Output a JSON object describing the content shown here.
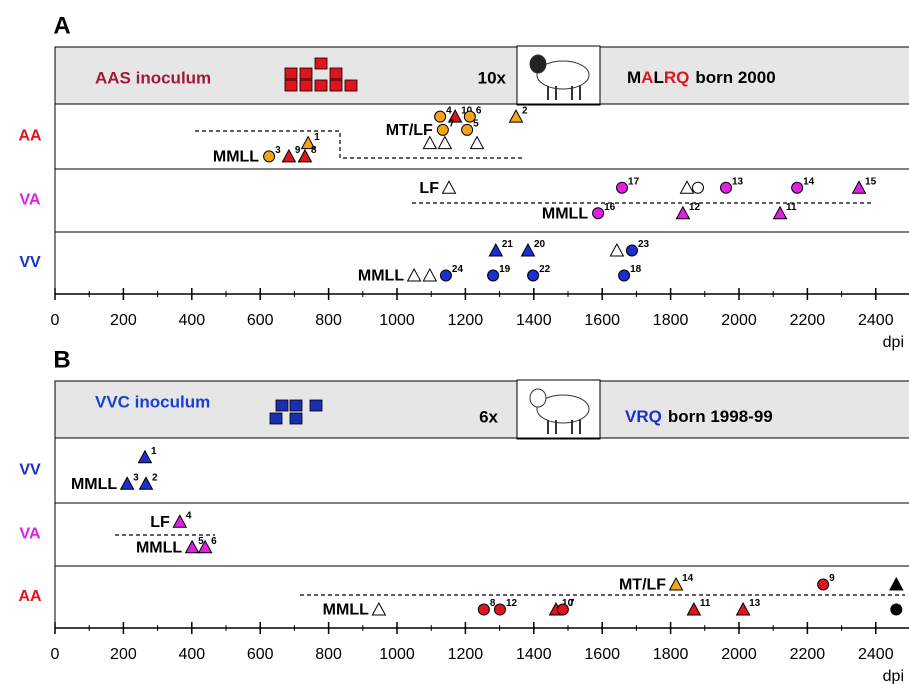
{
  "chart_data": [
    {
      "type": "scatter",
      "panel": "A",
      "header": {
        "inoculum": "AAS inoculum",
        "inoculum_color": "#a3173d",
        "marker_color": "#e0141e",
        "dose": "10x",
        "genotype": [
          {
            "text": "M",
            "color": "#000000"
          },
          {
            "text": "A",
            "color": "#e0141e"
          },
          {
            "text": "L",
            "color": "#000000"
          },
          {
            "text": "RQ",
            "color": "#e0141e"
          }
        ],
        "born": "born 2000"
      },
      "rows": [
        {
          "name": "AA",
          "color": "#e0141e",
          "tiers": [
            {
              "points": [
                {
                  "x": 1126,
                  "id": 4,
                  "shape": "circle",
                  "color": "#f5a31a"
                },
                {
                  "x": 1170,
                  "id": 10,
                  "shape": "triangle",
                  "color": "#e0141e"
                },
                {
                  "x": 1213,
                  "id": 6,
                  "shape": "circle",
                  "color": "#f5a31a"
                },
                {
                  "x": 1348,
                  "id": 2,
                  "shape": "triangle",
                  "color": "#f5a31a"
                }
              ]
            },
            {
              "label": "MT/LF",
              "points": [
                {
                  "x": 1134,
                  "id": 7,
                  "shape": "circle",
                  "color": "#f5a31a"
                },
                {
                  "x": 1205,
                  "id": 5,
                  "shape": "circle",
                  "color": "#f5a31a"
                }
              ]
            },
            {
              "points": [
                {
                  "x": 1096,
                  "shape": "triangle",
                  "color": "#ffffff"
                },
                {
                  "x": 1140,
                  "shape": "triangle",
                  "color": "#ffffff"
                },
                {
                  "x": 1234,
                  "shape": "triangle",
                  "color": "#ffffff"
                },
                {
                  "x": 740,
                  "id": 1,
                  "shape": "triangle",
                  "color": "#f5a31a"
                }
              ]
            },
            {
              "label": "MMLL",
              "points": [
                {
                  "x": 626,
                  "id": 3,
                  "shape": "circle",
                  "color": "#f5a31a"
                },
                {
                  "x": 684,
                  "id": 9,
                  "shape": "triangle",
                  "color": "#e0141e"
                },
                {
                  "x": 731,
                  "id": 8,
                  "shape": "triangle",
                  "color": "#e0141e"
                }
              ]
            }
          ]
        },
        {
          "name": "VA",
          "color": "#e020e0",
          "tiers": [
            {
              "label": "LF",
              "points": [
                {
                  "x": 1152,
                  "shape": "triangle",
                  "color": "#ffffff"
                },
                {
                  "x": 1658,
                  "id": 17,
                  "shape": "circle",
                  "color": "#e020e0"
                },
                {
                  "x": 1848,
                  "shape": "triangle",
                  "color": "#ffffff"
                },
                {
                  "x": 1880,
                  "shape": "circle",
                  "color": "#ffffff"
                },
                {
                  "x": 1962,
                  "id": 13,
                  "shape": "circle",
                  "color": "#e020e0"
                },
                {
                  "x": 2170,
                  "id": 14,
                  "shape": "circle",
                  "color": "#e020e0"
                },
                {
                  "x": 2351,
                  "id": 15,
                  "shape": "triangle",
                  "color": "#e020e0"
                }
              ]
            },
            {
              "label": "MMLL",
              "points": [
                {
                  "x": 1588,
                  "id": 16,
                  "shape": "circle",
                  "color": "#e020e0"
                },
                {
                  "x": 1836,
                  "id": 12,
                  "shape": "triangle",
                  "color": "#e020e0"
                },
                {
                  "x": 2120,
                  "id": 11,
                  "shape": "triangle",
                  "color": "#e020e0"
                }
              ]
            }
          ]
        },
        {
          "name": "VV",
          "color": "#1a2fd0",
          "tiers": [
            {
              "points": [
                {
                  "x": 1289,
                  "id": 21,
                  "shape": "triangle",
                  "color": "#1a2fd0"
                },
                {
                  "x": 1383,
                  "id": 20,
                  "shape": "triangle",
                  "color": "#1a2fd0"
                },
                {
                  "x": 1643,
                  "shape": "triangle",
                  "color": "#ffffff"
                },
                {
                  "x": 1687,
                  "id": 23,
                  "shape": "circle",
                  "color": "#1a2fd0"
                }
              ]
            },
            {
              "label": "MMLL",
              "points": [
                {
                  "x": 1050,
                  "shape": "triangle",
                  "color": "#ffffff"
                },
                {
                  "x": 1096,
                  "shape": "triangle",
                  "color": "#ffffff"
                },
                {
                  "x": 1143,
                  "id": 24,
                  "shape": "circle",
                  "color": "#1a2fd0"
                },
                {
                  "x": 1281,
                  "id": 19,
                  "shape": "circle",
                  "color": "#1a2fd0"
                },
                {
                  "x": 1398,
                  "id": 22,
                  "shape": "circle",
                  "color": "#1a2fd0"
                },
                {
                  "x": 1664,
                  "id": 18,
                  "shape": "circle",
                  "color": "#1a2fd0"
                }
              ]
            }
          ]
        }
      ],
      "xlim": [
        0,
        2500
      ],
      "xticks": [
        0,
        200,
        400,
        600,
        800,
        1000,
        1200,
        1400,
        1600,
        1800,
        2000,
        2200,
        2400
      ],
      "xminorticks": [
        100,
        300,
        500,
        700,
        900,
        1100,
        1300,
        1500,
        1700,
        1900,
        2100,
        2300
      ],
      "xlabel": "dpi"
    },
    {
      "type": "scatter",
      "panel": "B",
      "header": {
        "inoculum": "VVC inoculum",
        "inoculum_color": "#1a3fd0",
        "marker_color": "#1a2fb0",
        "dose": "6x",
        "genotype": [
          {
            "text": "VRQ",
            "color": "#1a2fd0"
          }
        ],
        "born": "born 1998-99"
      },
      "rows": [
        {
          "name": "VV",
          "color": "#1a2fd0",
          "tiers": [
            {
              "points": [
                {
                  "x": 263,
                  "id": 1,
                  "shape": "triangle",
                  "color": "#1a2fd0"
                }
              ]
            },
            {
              "label": "MMLL",
              "points": [
                {
                  "x": 211,
                  "id": 3,
                  "shape": "triangle",
                  "color": "#1a2fd0"
                },
                {
                  "x": 266,
                  "id": 2,
                  "shape": "triangle",
                  "color": "#1a2fd0"
                }
              ]
            }
          ]
        },
        {
          "name": "VA",
          "color": "#e020e0",
          "tiers": [
            {
              "label": "LF",
              "points": [
                {
                  "x": 365,
                  "id": 4,
                  "shape": "triangle",
                  "color": "#e020e0"
                }
              ]
            },
            {
              "label": "MMLL",
              "points": [
                {
                  "x": 401,
                  "id": 5,
                  "shape": "triangle",
                  "color": "#e020e0"
                },
                {
                  "x": 439,
                  "id": 6,
                  "shape": "triangle",
                  "color": "#e020e0"
                }
              ]
            }
          ]
        },
        {
          "name": "AA",
          "color": "#e0141e",
          "tiers": [
            {
              "label": "MT/LF",
              "points": [
                {
                  "x": 1816,
                  "id": 14,
                  "shape": "triangle",
                  "color": "#f5a31a"
                },
                {
                  "x": 2246,
                  "id": 9,
                  "shape": "circle",
                  "color": "#e0141e"
                },
                {
                  "x": 2460,
                  "shape": "triangle",
                  "color": "#000000"
                }
              ]
            },
            {
              "label": "MMLL",
              "points": [
                {
                  "x": 947,
                  "shape": "triangle",
                  "color": "#ffffff"
                },
                {
                  "x": 1254,
                  "id": 8,
                  "shape": "circle",
                  "color": "#e0141e"
                },
                {
                  "x": 1301,
                  "id": 12,
                  "shape": "circle",
                  "color": "#e0141e"
                },
                {
                  "x": 1465,
                  "id": 10,
                  "shape": "triangle",
                  "color": "#e0141e"
                },
                {
                  "x": 1485,
                  "id": 7,
                  "shape": "circle",
                  "color": "#e0141e"
                },
                {
                  "x": 1868,
                  "id": 11,
                  "shape": "triangle",
                  "color": "#e0141e"
                },
                {
                  "x": 2012,
                  "id": 13,
                  "shape": "triangle",
                  "color": "#e0141e"
                },
                {
                  "x": 2460,
                  "shape": "circle",
                  "color": "#000000"
                }
              ]
            }
          ]
        }
      ],
      "xlim": [
        0,
        2500
      ],
      "xticks": [
        0,
        200,
        400,
        600,
        800,
        1000,
        1200,
        1400,
        1600,
        1800,
        2000,
        2200,
        2400
      ],
      "xminorticks": [
        100,
        300,
        500,
        700,
        900,
        1100,
        1300,
        1500,
        1700,
        1900,
        2100,
        2300
      ],
      "xlabel": "dpi"
    }
  ]
}
